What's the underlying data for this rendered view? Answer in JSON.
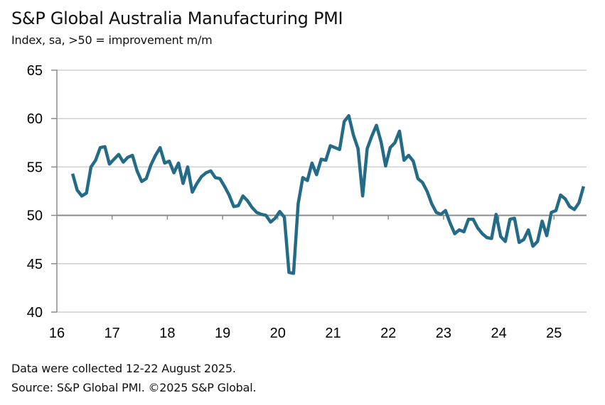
{
  "chart_data": {
    "type": "line",
    "title": "S&P Global Australia Manufacturing PMI",
    "subtitle": "Index, sa, >50 = improvement m/m",
    "xlabel": "",
    "ylabel": "",
    "ylim": [
      40,
      65
    ],
    "yticks": [
      "65",
      "60",
      "55",
      "50",
      "45",
      "40"
    ],
    "ytick_values": [
      65,
      60,
      55,
      50,
      45,
      40
    ],
    "xlim": [
      2016,
      2025.6
    ],
    "xticks": [
      "16",
      "17",
      "18",
      "19",
      "20",
      "21",
      "22",
      "23",
      "24",
      "25"
    ],
    "xtick_values": [
      2016,
      2017,
      2018,
      2019,
      2020,
      2021,
      2022,
      2023,
      2024,
      2025
    ],
    "grid": true,
    "reference_line": 50,
    "legend": "none",
    "series": [
      {
        "name": "Australia Manufacturing PMI",
        "color": "#236B87",
        "start": "2016-05",
        "frequency": "monthly",
        "values": [
          54.3,
          52.6,
          52.0,
          52.3,
          55.0,
          55.7,
          57.0,
          57.1,
          55.3,
          55.8,
          56.3,
          55.5,
          56.0,
          56.2,
          54.6,
          53.5,
          53.8,
          55.2,
          56.2,
          57.0,
          55.4,
          55.6,
          54.4,
          55.4,
          53.3,
          55.0,
          52.4,
          53.3,
          54.0,
          54.4,
          54.6,
          53.9,
          53.8,
          53.0,
          52.1,
          50.9,
          51.0,
          52.0,
          51.5,
          50.8,
          50.3,
          50.1,
          50.0,
          49.3,
          49.7,
          50.4,
          49.8,
          44.1,
          44.0,
          51.2,
          53.9,
          53.6,
          55.4,
          54.2,
          55.8,
          55.7,
          57.2,
          57.0,
          56.8,
          59.7,
          60.3,
          58.3,
          56.9,
          52.0,
          56.9,
          58.2,
          59.3,
          57.6,
          55.1,
          57.0,
          57.5,
          58.7,
          55.7,
          56.2,
          55.6,
          53.8,
          53.4,
          52.5,
          51.2,
          50.3,
          50.1,
          50.5,
          49.2,
          48.1,
          48.5,
          48.3,
          49.6,
          49.6,
          48.7,
          48.1,
          47.7,
          47.6,
          50.1,
          47.8,
          47.3,
          49.6,
          49.7,
          47.2,
          47.5,
          48.5,
          46.8,
          47.3,
          49.4,
          47.9,
          50.3,
          50.5,
          52.1,
          51.7,
          50.9,
          50.6,
          51.3,
          53.0
        ]
      }
    ]
  },
  "footer": {
    "note": "Data were collected 12-22 August 2025.",
    "source": "Source: S&P Global PMI. ©2025 S&P Global."
  }
}
